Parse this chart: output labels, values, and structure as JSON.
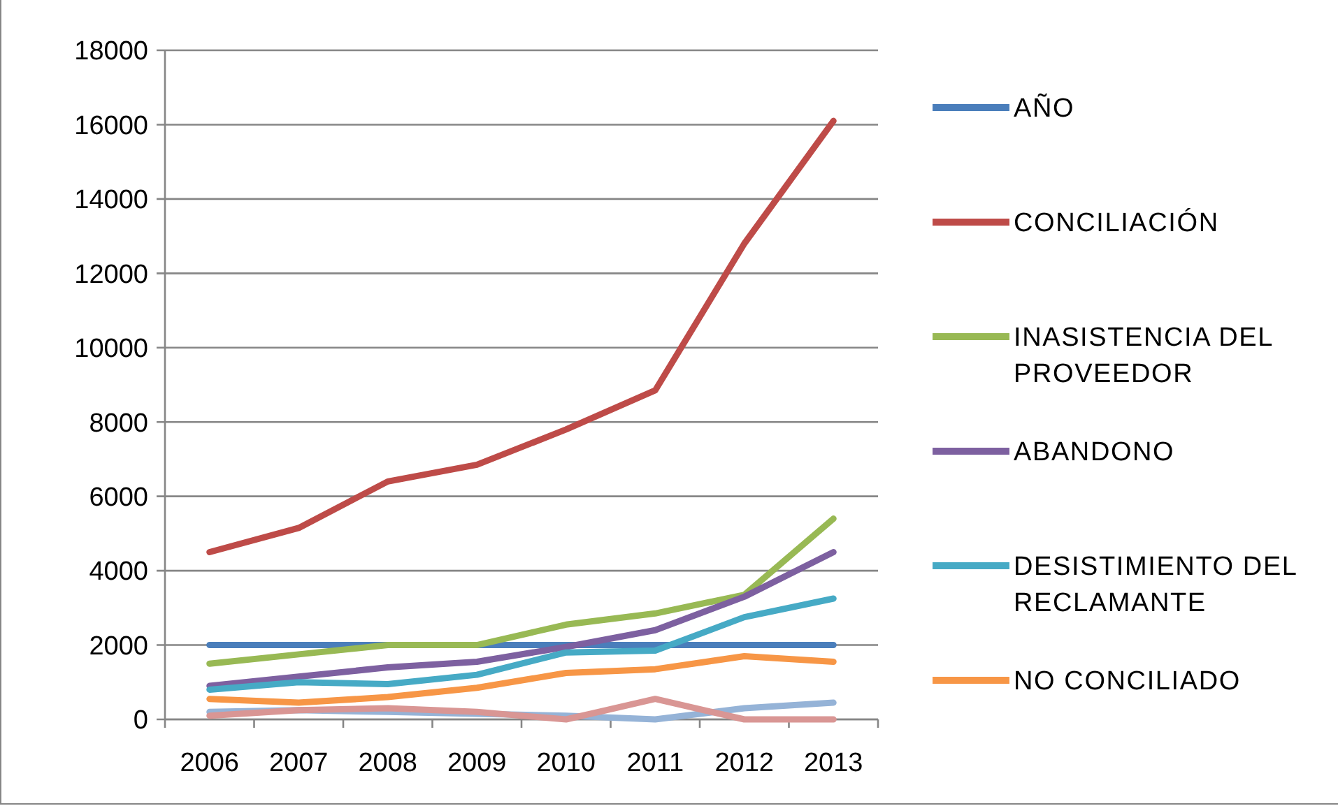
{
  "chart_data": {
    "type": "line",
    "categories": [
      "2006",
      "2007",
      "2008",
      "2009",
      "2010",
      "2011",
      "2012",
      "2013"
    ],
    "series": [
      {
        "name": "AÑO",
        "color": "#4a7ebb",
        "values": [
          2000,
          2000,
          2000,
          2000,
          2000,
          2000,
          2000,
          2000
        ]
      },
      {
        "name": "CONCILIACIÓN",
        "color": "#be4b48",
        "values": [
          4500,
          5150,
          6400,
          6850,
          7800,
          8850,
          12800,
          16100
        ]
      },
      {
        "name": "INASISTENCIA DEL PROVEEDOR",
        "color": "#98b954",
        "values": [
          1500,
          1750,
          2000,
          2000,
          2550,
          2850,
          3350,
          5400
        ]
      },
      {
        "name": "ABANDONO",
        "color": "#7d60a0",
        "values": [
          900,
          1150,
          1400,
          1550,
          1950,
          2400,
          3300,
          4500
        ]
      },
      {
        "name": "DESISTIMIENTO DEL RECLAMANTE",
        "color": "#46aac5",
        "values": [
          800,
          1000,
          950,
          1200,
          1800,
          1850,
          2750,
          3250
        ]
      },
      {
        "name": "NO CONCILIADO",
        "color": "#f79646",
        "values": [
          550,
          450,
          600,
          850,
          1250,
          1350,
          1700,
          1550
        ]
      },
      {
        "color": "#95b3d7",
        "values": [
          200,
          250,
          200,
          150,
          100,
          0,
          300,
          450
        ]
      },
      {
        "color": "#d99694",
        "values": [
          100,
          250,
          300,
          200,
          0,
          550,
          0,
          0
        ]
      }
    ],
    "ylim": [
      0,
      18000
    ],
    "yticks": [
      0,
      2000,
      4000,
      6000,
      8000,
      10000,
      12000,
      14000,
      16000,
      18000
    ],
    "grid": "y",
    "legend": "right",
    "marker": "none",
    "line_style": "solid"
  }
}
